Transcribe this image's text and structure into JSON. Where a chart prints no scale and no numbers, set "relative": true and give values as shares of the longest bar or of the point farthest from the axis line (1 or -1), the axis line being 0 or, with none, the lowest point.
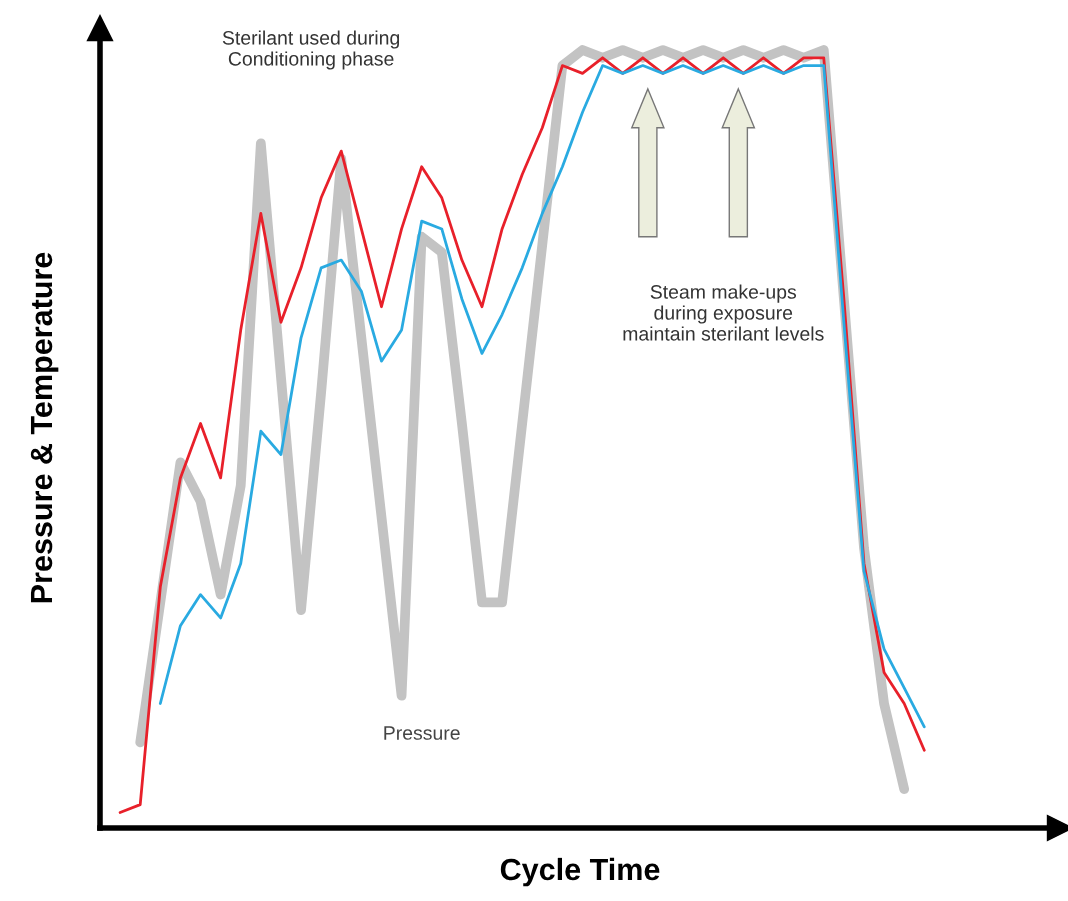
{
  "chart_data": {
    "type": "line",
    "relative": true,
    "xlabel": "Cycle Time",
    "ylabel": "Pressure & Temperature",
    "annotations": [
      "Sterilant used during\nConditioning phase",
      "Steam make-ups\nduring exposure\nmaintain sterilant levels"
    ],
    "categories": [
      null,
      null,
      null,
      null,
      null,
      null,
      null,
      null,
      null,
      null,
      null,
      null,
      null,
      null,
      null,
      null,
      null,
      null,
      null,
      null,
      null,
      null,
      null,
      null,
      null,
      null,
      null,
      null,
      null,
      null,
      null,
      null,
      null,
      null,
      null,
      null,
      null,
      null,
      null,
      null,
      null,
      null,
      null,
      null,
      null,
      null,
      null,
      null
    ],
    "series": [
      {
        "name": "Pressure",
        "color": "#c3c3c3",
        "values": [
          null,
          null,
          0.11,
          0.29,
          0.47,
          0.42,
          0.3,
          0.44,
          0.88,
          0.58,
          0.28,
          0.56,
          0.86,
          0.63,
          0.4,
          0.17,
          0.76,
          0.74,
          0.52,
          0.29,
          0.29,
          0.52,
          0.75,
          0.98,
          1.0,
          0.99,
          1.0,
          0.99,
          1.0,
          0.99,
          1.0,
          0.99,
          1.0,
          0.99,
          1.0,
          0.99,
          1.0,
          0.68,
          0.36,
          0.16,
          0.05,
          null,
          null,
          null,
          null,
          null,
          null,
          null
        ]
      },
      {
        "color": "#e8202a",
        "values": [
          null,
          0.02,
          0.03,
          0.31,
          0.45,
          0.52,
          0.45,
          0.64,
          0.79,
          0.65,
          0.72,
          0.81,
          0.87,
          0.77,
          0.67,
          0.77,
          0.85,
          0.81,
          0.73,
          0.67,
          0.77,
          0.84,
          0.9,
          0.98,
          0.97,
          0.99,
          0.97,
          0.99,
          0.97,
          0.99,
          0.97,
          0.99,
          0.97,
          0.99,
          0.97,
          0.99,
          0.99,
          0.68,
          0.34,
          0.2,
          0.16,
          0.1,
          null,
          null,
          null,
          null,
          null,
          null
        ]
      },
      {
        "color": "#29aae1",
        "values": [
          null,
          null,
          null,
          0.16,
          0.26,
          0.3,
          0.27,
          0.34,
          0.51,
          0.48,
          0.63,
          0.72,
          0.73,
          0.69,
          0.6,
          0.64,
          0.78,
          0.77,
          0.68,
          0.61,
          0.66,
          0.72,
          0.79,
          0.85,
          0.92,
          0.98,
          0.97,
          0.98,
          0.97,
          0.98,
          0.97,
          0.98,
          0.97,
          0.98,
          0.97,
          0.98,
          0.98,
          0.65,
          0.33,
          0.23,
          0.18,
          0.13,
          null,
          null,
          null,
          null,
          null,
          null
        ]
      }
    ]
  }
}
